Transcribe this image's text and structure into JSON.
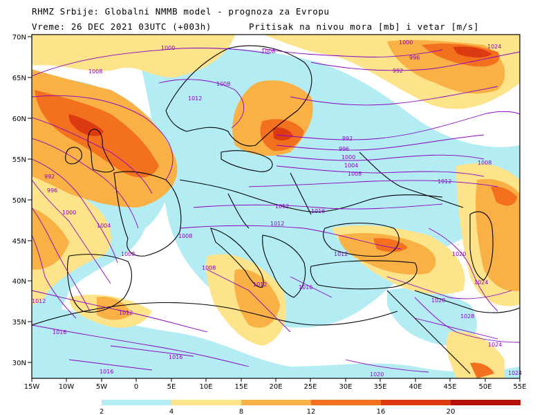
{
  "header": {
    "line1": "RHMZ Srbije: Globalni NMMB model - prognoza za Evropu",
    "line2": "Vreme: 26 DEC 2021 03UTC (+003h)",
    "line3": "Pritisak na nivou mora [mb] i vetar [m/s]"
  },
  "axes": {
    "lat_labels": [
      "70N",
      "65N",
      "60N",
      "55N",
      "50N",
      "45N",
      "40N",
      "35N",
      "30N"
    ],
    "lon_labels": [
      "15W",
      "10W",
      "5W",
      "0",
      "5E",
      "10E",
      "15E",
      "20E",
      "25E",
      "30E",
      "35E",
      "40E",
      "45E",
      "50E",
      "55E"
    ]
  },
  "isobar_labels": [
    "1000",
    "1008",
    "1008",
    "1008",
    "996",
    "992",
    "1000",
    "1024",
    "1012",
    "992",
    "996",
    "1000",
    "1004",
    "1008",
    "1008",
    "992",
    "996",
    "1000",
    "1004",
    "1008",
    "1012",
    "1012",
    "1016",
    "1008",
    "1012",
    "1020",
    "1024",
    "1028",
    "1024",
    "1028",
    "1012",
    "1012",
    "1008",
    "1016",
    "1012",
    "1016",
    "1016",
    "1016",
    "1020",
    "1024",
    "1012"
  ],
  "colors": {
    "land_bg": "#ffffff",
    "wind_2_4": "#b4ecf4",
    "wind_4_8": "#fde48a",
    "wind_8_12": "#f9b045",
    "wind_12_16": "#f2701e",
    "wind_16_20": "#dc3a10",
    "wind_20_plus": "#b31108",
    "isobar": "#8a00c4",
    "coast": "#000000"
  },
  "legend": {
    "ticks": [
      "2",
      "4",
      "8",
      "12",
      "16",
      "20"
    ]
  }
}
